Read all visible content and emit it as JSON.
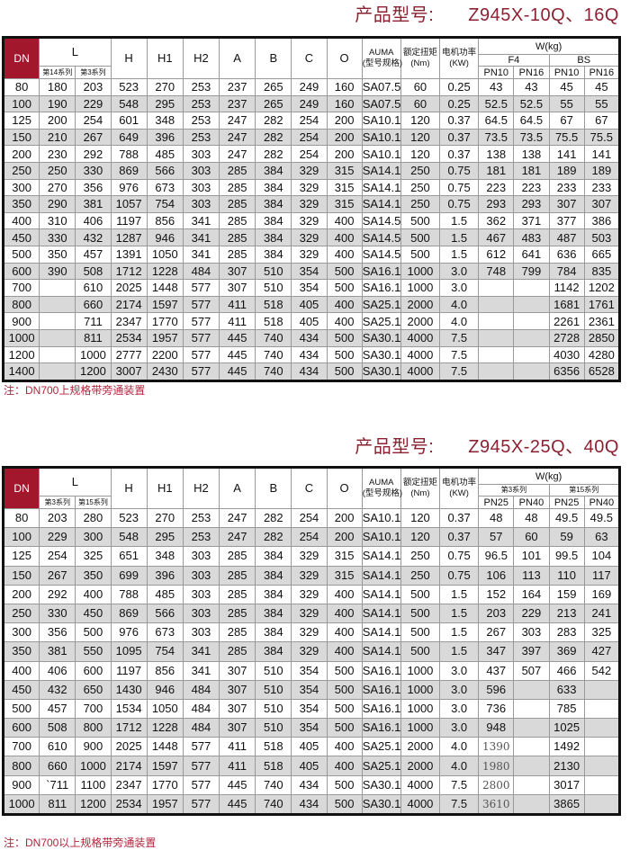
{
  "table1": {
    "title_label": "产品型号:",
    "title_model": "Z945X-10Q、16Q",
    "headers": {
      "dn": "DN",
      "l": "L",
      "l_sub": [
        "第14系列",
        "第3系列"
      ],
      "dims": [
        "H",
        "H1",
        "H2",
        "A",
        "B",
        "C",
        "O"
      ],
      "auma": "AUMA",
      "auma_sub": "(型号规格)",
      "torque": "额定扭矩",
      "torque_unit": "(Nm)",
      "power": "电机功率",
      "power_unit": "(KW)",
      "weight": "W(kg)",
      "weight_groups": [
        "F4",
        "BS"
      ],
      "pn": [
        "PN10",
        "PN16",
        "PN10",
        "PN16"
      ]
    },
    "rows": [
      [
        "80",
        "180",
        "203",
        "523",
        "270",
        "253",
        "237",
        "265",
        "249",
        "160",
        "SA07.5",
        "60",
        "0.25",
        "43",
        "43",
        "45",
        "45"
      ],
      [
        "100",
        "190",
        "229",
        "548",
        "295",
        "253",
        "237",
        "265",
        "249",
        "160",
        "SA07.5",
        "60",
        "0.25",
        "52.5",
        "52.5",
        "55",
        "55"
      ],
      [
        "125",
        "200",
        "254",
        "601",
        "348",
        "253",
        "247",
        "282",
        "254",
        "200",
        "SA10.1",
        "120",
        "0.37",
        "64.5",
        "64.5",
        "67",
        "67"
      ],
      [
        "150",
        "210",
        "267",
        "649",
        "396",
        "253",
        "247",
        "282",
        "254",
        "200",
        "SA10.1",
        "120",
        "0.37",
        "73.5",
        "73.5",
        "75.5",
        "75.5"
      ],
      [
        "200",
        "230",
        "292",
        "788",
        "485",
        "303",
        "247",
        "282",
        "254",
        "200",
        "SA10.1",
        "120",
        "0.37",
        "138",
        "138",
        "141",
        "141"
      ],
      [
        "250",
        "250",
        "330",
        "869",
        "566",
        "303",
        "285",
        "384",
        "329",
        "315",
        "SA14.1",
        "250",
        "0.75",
        "181",
        "181",
        "189",
        "189"
      ],
      [
        "300",
        "270",
        "356",
        "976",
        "673",
        "303",
        "285",
        "384",
        "329",
        "315",
        "SA14.1",
        "250",
        "0.75",
        "223",
        "223",
        "233",
        "233"
      ],
      [
        "350",
        "290",
        "381",
        "1057",
        "754",
        "303",
        "285",
        "384",
        "329",
        "315",
        "SA14.1",
        "250",
        "0.75",
        "293",
        "293",
        "307",
        "307"
      ],
      [
        "400",
        "310",
        "406",
        "1197",
        "856",
        "341",
        "285",
        "384",
        "329",
        "400",
        "SA14.5",
        "500",
        "1.5",
        "362",
        "371",
        "377",
        "386"
      ],
      [
        "450",
        "330",
        "432",
        "1287",
        "946",
        "341",
        "285",
        "384",
        "329",
        "400",
        "SA14.5",
        "500",
        "1.5",
        "467",
        "483",
        "487",
        "503"
      ],
      [
        "500",
        "350",
        "457",
        "1391",
        "1050",
        "341",
        "285",
        "384",
        "329",
        "400",
        "SA14.5",
        "500",
        "1.5",
        "612",
        "641",
        "636",
        "665"
      ],
      [
        "600",
        "390",
        "508",
        "1712",
        "1228",
        "484",
        "307",
        "510",
        "354",
        "500",
        "SA16.1",
        "1000",
        "3.0",
        "748",
        "799",
        "784",
        "835"
      ],
      [
        "700",
        "",
        "610",
        "2025",
        "1448",
        "577",
        "307",
        "510",
        "354",
        "500",
        "SA16.1",
        "1000",
        "3.0",
        "",
        "",
        "1142",
        "1202"
      ],
      [
        "800",
        "",
        "660",
        "2174",
        "1597",
        "577",
        "411",
        "518",
        "405",
        "400",
        "SA25.1",
        "2000",
        "4.0",
        "",
        "",
        "1681",
        "1761"
      ],
      [
        "900",
        "",
        "711",
        "2347",
        "1770",
        "577",
        "411",
        "518",
        "405",
        "400",
        "SA25.1",
        "2000",
        "4.0",
        "",
        "",
        "2261",
        "2361"
      ],
      [
        "1000",
        "",
        "811",
        "2534",
        "1957",
        "577",
        "445",
        "740",
        "434",
        "500",
        "SA30.1",
        "4000",
        "7.5",
        "",
        "",
        "2728",
        "2850"
      ],
      [
        "1200",
        "",
        "1000",
        "2777",
        "2200",
        "577",
        "445",
        "740",
        "434",
        "500",
        "SA30.1",
        "4000",
        "7.5",
        "",
        "",
        "4030",
        "4280"
      ],
      [
        "1400",
        "",
        "1200",
        "3007",
        "2430",
        "577",
        "445",
        "740",
        "434",
        "500",
        "SA30.1",
        "4000",
        "7.5",
        "",
        "",
        "6356",
        "6528"
      ]
    ],
    "note": "注：DN700上规格带旁通装置"
  },
  "table2": {
    "title_label": "产品型号:",
    "title_model": "Z945X-25Q、40Q",
    "headers": {
      "dn": "DN",
      "l": "L",
      "l_sub": [
        "第3系列",
        "第15系列"
      ],
      "dims": [
        "H",
        "H1",
        "H2",
        "A",
        "B",
        "C",
        "O"
      ],
      "auma": "AUMA",
      "auma_sub": "(型号规格)",
      "torque": "额定扭矩",
      "torque_unit": "(Nm)",
      "power": "电机功率",
      "power_unit": "(KW)",
      "weight": "W(kg)",
      "weight_groups": [
        "第3系列",
        "第15系列"
      ],
      "pn": [
        "PN25",
        "PN40",
        "PN25",
        "PN40"
      ]
    },
    "rows": [
      [
        "80",
        "203",
        "280",
        "523",
        "270",
        "253",
        "247",
        "282",
        "254",
        "200",
        "SA10.1",
        "120",
        "0.37",
        "48",
        "48",
        "49.5",
        "49.5"
      ],
      [
        "100",
        "229",
        "300",
        "548",
        "295",
        "253",
        "247",
        "282",
        "254",
        "200",
        "SA10.1",
        "120",
        "0.37",
        "57",
        "60",
        "59",
        "63"
      ],
      [
        "125",
        "254",
        "325",
        "651",
        "348",
        "303",
        "285",
        "384",
        "329",
        "315",
        "SA14.1",
        "250",
        "0.75",
        "96.5",
        "101",
        "99.5",
        "104"
      ],
      [
        "150",
        "267",
        "350",
        "699",
        "396",
        "303",
        "285",
        "384",
        "329",
        "315",
        "SA14.1",
        "250",
        "0.75",
        "106",
        "113",
        "110",
        "117"
      ],
      [
        "200",
        "292",
        "400",
        "788",
        "485",
        "303",
        "285",
        "384",
        "329",
        "400",
        "SA14.1",
        "500",
        "1.5",
        "152",
        "164",
        "159",
        "169"
      ],
      [
        "250",
        "330",
        "450",
        "869",
        "566",
        "303",
        "285",
        "384",
        "329",
        "400",
        "SA14.1",
        "500",
        "1.5",
        "203",
        "229",
        "213",
        "241"
      ],
      [
        "300",
        "356",
        "500",
        "976",
        "673",
        "303",
        "285",
        "384",
        "329",
        "400",
        "SA14.1",
        "500",
        "1.5",
        "267",
        "303",
        "283",
        "325"
      ],
      [
        "350",
        "381",
        "550",
        "1095",
        "754",
        "341",
        "285",
        "384",
        "329",
        "400",
        "SA14.1",
        "500",
        "1.5",
        "347",
        "397",
        "369",
        "427"
      ],
      [
        "400",
        "406",
        "600",
        "1197",
        "856",
        "341",
        "307",
        "510",
        "354",
        "500",
        "SA16.1",
        "1000",
        "3.0",
        "437",
        "507",
        "466",
        "542"
      ],
      [
        "450",
        "432",
        "650",
        "1430",
        "946",
        "484",
        "307",
        "510",
        "354",
        "500",
        "SA16.1",
        "1000",
        "3.0",
        "596",
        "",
        "633",
        ""
      ],
      [
        "500",
        "457",
        "700",
        "1534",
        "1050",
        "484",
        "307",
        "510",
        "354",
        "500",
        "SA16.1",
        "1000",
        "3.0",
        "736",
        "",
        "785",
        ""
      ],
      [
        "600",
        "508",
        "800",
        "1712",
        "1228",
        "484",
        "307",
        "510",
        "354",
        "500",
        "SA16.1",
        "1000",
        "3.0",
        "948",
        "",
        "1025",
        ""
      ],
      [
        "700",
        "610",
        "900",
        "2025",
        "1448",
        "577",
        "411",
        "518",
        "405",
        "400",
        "SA25.1",
        "2000",
        "4.0",
        "1390",
        "",
        "1492",
        ""
      ],
      [
        "800",
        "660",
        "1000",
        "2174",
        "1597",
        "577",
        "411",
        "518",
        "405",
        "400",
        "SA25.1",
        "2000",
        "4.0",
        "1980",
        "",
        "2130",
        ""
      ],
      [
        "900",
        "`711",
        "1100",
        "2347",
        "1770",
        "577",
        "445",
        "740",
        "434",
        "500",
        "SA30.1",
        "4000",
        "7.5",
        "2800",
        "",
        "3017",
        ""
      ],
      [
        "1000",
        "811",
        "1200",
        "2534",
        "1957",
        "577",
        "445",
        "740",
        "434",
        "500",
        "SA30.1",
        "4000",
        "7.5",
        "3610",
        "",
        "3865",
        ""
      ]
    ],
    "note": "注：DN700以上规格带旁通装置"
  },
  "colors": {
    "title": "#8a2232",
    "dn_header": "#a3172c",
    "note": "#b0243c",
    "alt_row": "#d9d9d9"
  }
}
